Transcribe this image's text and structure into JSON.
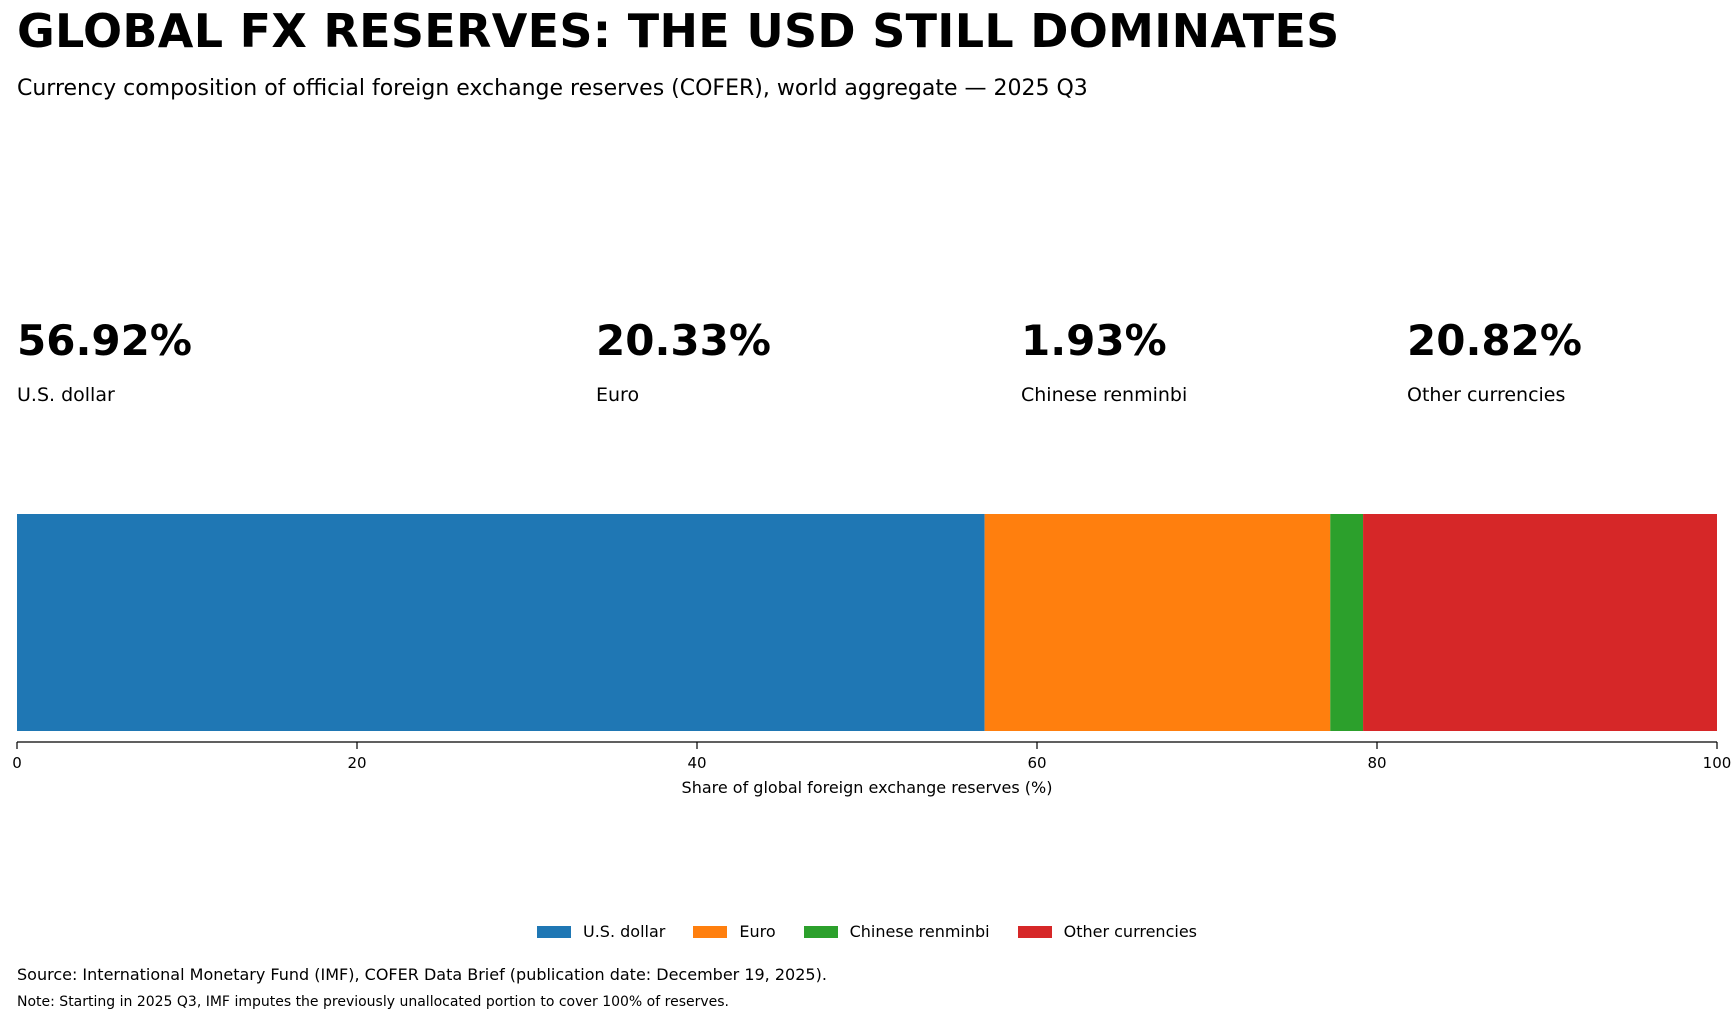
{
  "header": {
    "title": "GLOBAL FX RESERVES: THE USD STILL DOMINATES",
    "subtitle": "Currency composition of official foreign exchange reserves (COFER), world aggregate — 2025 Q3"
  },
  "kpis": [
    {
      "value": "56.92%",
      "label": "U.S. dollar"
    },
    {
      "value": "20.33%",
      "label": "Euro"
    },
    {
      "value": "1.93%",
      "label": "Chinese renminbi"
    },
    {
      "value": "20.82%",
      "label": "Other currencies"
    }
  ],
  "chart_data": {
    "type": "bar",
    "orientation": "horizontal-stacked",
    "title": "GLOBAL FX RESERVES: THE USD STILL DOMINATES",
    "subtitle": "Currency composition of official foreign exchange reserves (COFER), world aggregate — 2025 Q3",
    "xlabel": "Share of global foreign exchange reserves (%)",
    "ylabel": "",
    "xlim": [
      0,
      100
    ],
    "xticks": [
      0,
      20,
      40,
      60,
      80,
      100
    ],
    "grid": false,
    "legend_position": "bottom-center",
    "series": [
      {
        "name": "U.S. dollar",
        "values": [
          56.92
        ],
        "color": "#1f77b4"
      },
      {
        "name": "Euro",
        "values": [
          20.33
        ],
        "color": "#ff7f0e"
      },
      {
        "name": "Chinese renminbi",
        "values": [
          1.93
        ],
        "color": "#2ca02c"
      },
      {
        "name": "Other currencies",
        "values": [
          20.82
        ],
        "color": "#d62728"
      }
    ]
  },
  "footer": {
    "source": "Source: International Monetary Fund (IMF), COFER Data Brief (publication date: December 19, 2025).",
    "note": "Note: Starting in 2025 Q3, IMF imputes the previously unallocated portion to cover 100% of reserves."
  }
}
